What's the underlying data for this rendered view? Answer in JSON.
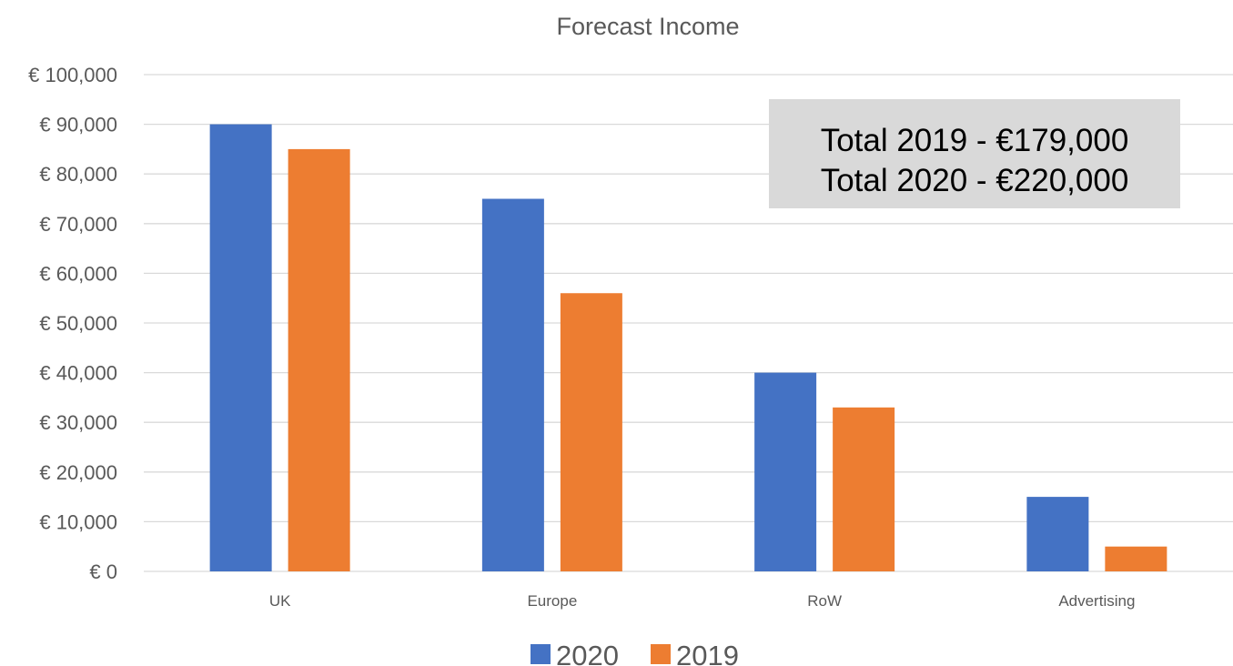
{
  "chart_data": {
    "type": "bar",
    "title": "Forecast Income",
    "categories": [
      "UK",
      "Europe",
      "RoW",
      "Advertising"
    ],
    "series": [
      {
        "name": "2020",
        "color": "#4472c4",
        "values": [
          90000,
          75000,
          40000,
          15000
        ]
      },
      {
        "name": "2019",
        "color": "#ed7d31",
        "values": [
          85000,
          56000,
          33000,
          5000
        ]
      }
    ],
    "ylim": [
      0,
      100000
    ],
    "yticks": [
      0,
      10000,
      20000,
      30000,
      40000,
      50000,
      60000,
      70000,
      80000,
      90000,
      100000
    ],
    "ytick_labels": [
      "€ 0",
      "€ 10,000",
      "€ 20,000",
      "€ 30,000",
      "€ 40,000",
      "€ 50,000",
      "€ 60,000",
      "€ 70,000",
      "€ 80,000",
      "€ 90,000",
      "€ 100,000"
    ],
    "xlabel": "",
    "ylabel": "",
    "grid": true,
    "legend_position": "bottom",
    "annotation": {
      "lines": [
        "Total 2019 - €179,000",
        "Total 2020 - €220,000"
      ],
      "background": "#d9d9d9"
    }
  }
}
